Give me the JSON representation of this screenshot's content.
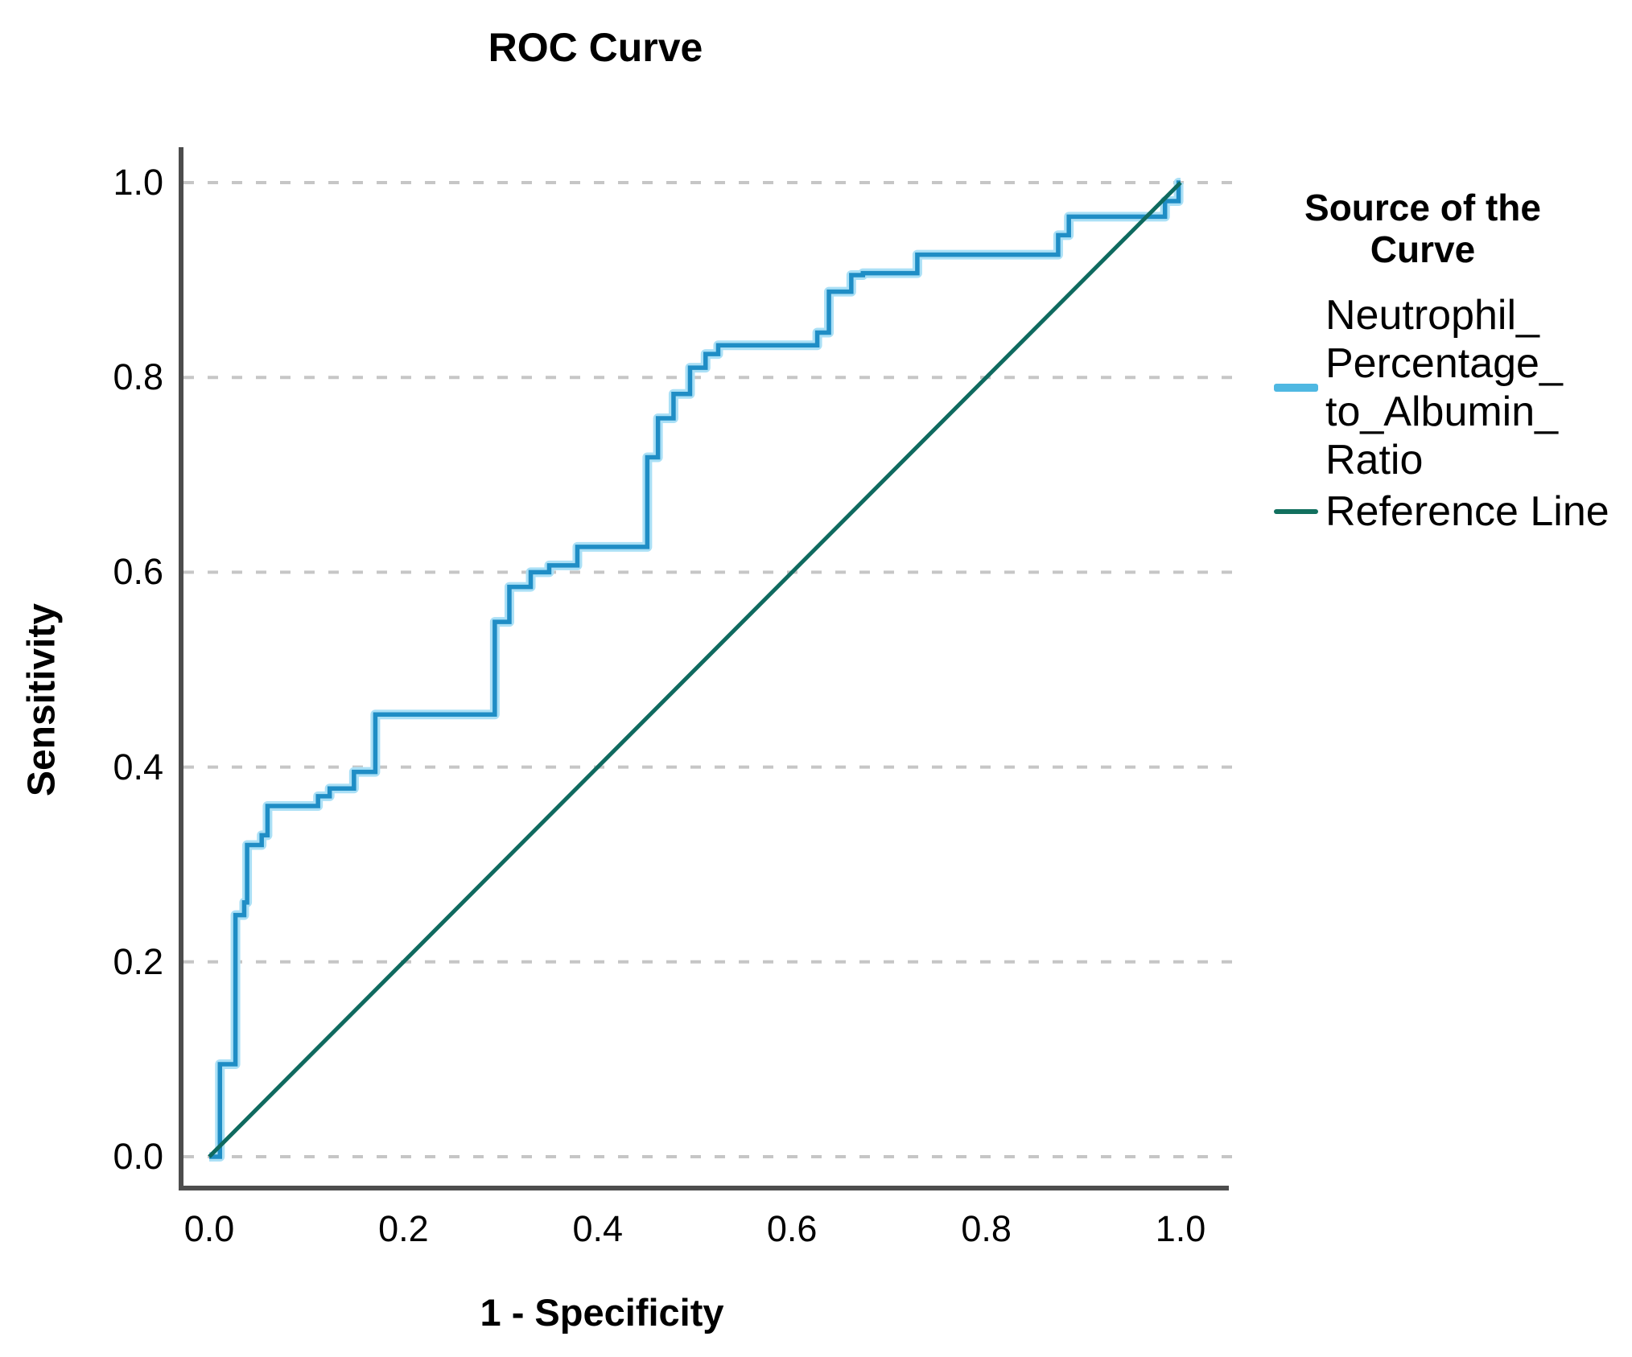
{
  "title": "ROC Curve",
  "axes": {
    "x_label": "1 - Specificity",
    "y_label": "Sensitivity",
    "x_ticks": [
      "0.0",
      "0.2",
      "0.4",
      "0.6",
      "0.8",
      "1.0"
    ],
    "y_ticks": [
      "0.0",
      "0.2",
      "0.4",
      "0.6",
      "0.8",
      "1.0"
    ]
  },
  "legend": {
    "title": "Source of the\nCurve",
    "items": [
      {
        "label_display": "Neutrophil_\nPercentage_\nto_Albumin_\nRatio",
        "series": "Neutrophil_Percentage_to_Albumin_Ratio",
        "color": "#4FB8E2",
        "swatch_thickness": 10
      },
      {
        "label_display": "Reference Line",
        "series": "Reference Line",
        "color": "#12705F",
        "swatch_thickness": 6
      }
    ]
  },
  "colors": {
    "curve": "#1F8DC5",
    "curve_halo": "#ABE0F6",
    "reference": "#0F6A5F",
    "axis": "#4D4D4D",
    "gridline": "#C6C6C6",
    "text": "#000000",
    "background": "#FFFFFF"
  },
  "chart_data": {
    "type": "line",
    "title": "ROC Curve",
    "xlabel": "1 - Specificity",
    "ylabel": "Sensitivity",
    "xlim": [
      0,
      1
    ],
    "ylim": [
      0,
      1
    ],
    "x_tick_values": [
      0.0,
      0.2,
      0.4,
      0.6,
      0.8,
      1.0
    ],
    "y_tick_values": [
      0.0,
      0.2,
      0.4,
      0.6,
      0.8,
      1.0
    ],
    "grid": "horizontal-dashed-only",
    "legend_position": "right",
    "series": [
      {
        "name": "Neutrophil_Percentage_to_Albumin_Ratio",
        "style": "step",
        "points": [
          [
            0,
            0
          ],
          [
            0.011,
            0
          ],
          [
            0.011,
            0.095
          ],
          [
            0.027,
            0.095
          ],
          [
            0.027,
            0.248
          ],
          [
            0.036,
            0.248
          ],
          [
            0.036,
            0.261
          ],
          [
            0.039,
            0.261
          ],
          [
            0.039,
            0.32
          ],
          [
            0.054,
            0.32
          ],
          [
            0.054,
            0.33
          ],
          [
            0.06,
            0.33
          ],
          [
            0.06,
            0.36
          ],
          [
            0.112,
            0.36
          ],
          [
            0.112,
            0.37
          ],
          [
            0.124,
            0.37
          ],
          [
            0.124,
            0.378
          ],
          [
            0.149,
            0.378
          ],
          [
            0.149,
            0.395
          ],
          [
            0.171,
            0.395
          ],
          [
            0.171,
            0.454
          ],
          [
            0.294,
            0.454
          ],
          [
            0.294,
            0.549
          ],
          [
            0.309,
            0.549
          ],
          [
            0.309,
            0.585
          ],
          [
            0.331,
            0.585
          ],
          [
            0.331,
            0.6
          ],
          [
            0.35,
            0.6
          ],
          [
            0.35,
            0.607
          ],
          [
            0.379,
            0.607
          ],
          [
            0.379,
            0.626
          ],
          [
            0.451,
            0.626
          ],
          [
            0.451,
            0.718
          ],
          [
            0.462,
            0.718
          ],
          [
            0.462,
            0.758
          ],
          [
            0.478,
            0.758
          ],
          [
            0.478,
            0.783
          ],
          [
            0.495,
            0.783
          ],
          [
            0.495,
            0.81
          ],
          [
            0.511,
            0.81
          ],
          [
            0.511,
            0.824
          ],
          [
            0.524,
            0.824
          ],
          [
            0.524,
            0.833
          ],
          [
            0.626,
            0.833
          ],
          [
            0.626,
            0.846
          ],
          [
            0.638,
            0.846
          ],
          [
            0.638,
            0.888
          ],
          [
            0.661,
            0.888
          ],
          [
            0.661,
            0.905
          ],
          [
            0.673,
            0.905
          ],
          [
            0.673,
            0.907
          ],
          [
            0.729,
            0.907
          ],
          [
            0.729,
            0.926
          ],
          [
            0.874,
            0.926
          ],
          [
            0.874,
            0.946
          ],
          [
            0.885,
            0.946
          ],
          [
            0.885,
            0.965
          ],
          [
            0.984,
            0.965
          ],
          [
            0.984,
            0.981
          ],
          [
            0.998,
            0.981
          ],
          [
            0.998,
            1
          ],
          [
            1,
            1
          ]
        ]
      },
      {
        "name": "Reference Line",
        "style": "straight",
        "points": [
          [
            0,
            0
          ],
          [
            1,
            1
          ]
        ]
      }
    ]
  }
}
